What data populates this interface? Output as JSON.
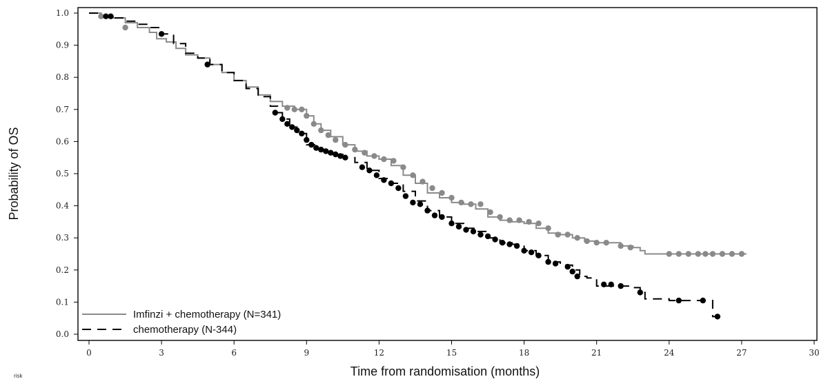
{
  "chart_data": {
    "type": "line",
    "xlabel": "Time from randomisation (months)",
    "ylabel": "Probability of OS",
    "xlim": [
      0,
      30
    ],
    "ylim": [
      0,
      1.0
    ],
    "xticks": [
      0,
      3,
      6,
      9,
      12,
      15,
      18,
      21,
      24,
      27,
      30
    ],
    "yticks": [
      0.0,
      0.1,
      0.2,
      0.3,
      0.4,
      0.5,
      0.6,
      0.7,
      0.8,
      0.9,
      1.0
    ],
    "corner_text": "risk",
    "legend": [
      {
        "label": "Imfinzi + chemotherapy (N=341)",
        "style": "solid",
        "color": "#8a8a8a"
      },
      {
        "label": "chemotherapy (N-344)",
        "style": "dashed",
        "color": "#000000"
      }
    ],
    "series": [
      {
        "name": "Imfinzi + chemotherapy (N=341)",
        "color": "#8a8a8a",
        "style": "solid",
        "x": [
          0,
          0.5,
          1.0,
          1.5,
          2.0,
          2.5,
          2.8,
          3.2,
          3.6,
          4.0,
          4.5,
          5.0,
          5.5,
          6.0,
          6.5,
          7.0,
          7.5,
          8.0,
          8.5,
          9.0,
          9.3,
          9.6,
          10.0,
          10.5,
          11.0,
          11.5,
          12.0,
          12.5,
          13.0,
          13.5,
          14.0,
          14.5,
          15.0,
          15.5,
          16.0,
          16.5,
          17.0,
          17.5,
          18.0,
          18.5,
          19.0,
          19.5,
          20.0,
          20.5,
          21.0,
          21.5,
          22.0,
          22.5,
          22.8,
          23.0,
          24.0,
          25.0,
          26.0,
          27.2
        ],
        "y": [
          1.0,
          0.99,
          0.985,
          0.97,
          0.955,
          0.94,
          0.92,
          0.91,
          0.89,
          0.87,
          0.86,
          0.84,
          0.815,
          0.79,
          0.77,
          0.745,
          0.725,
          0.71,
          0.7,
          0.68,
          0.655,
          0.635,
          0.615,
          0.59,
          0.57,
          0.555,
          0.545,
          0.525,
          0.495,
          0.47,
          0.44,
          0.425,
          0.41,
          0.405,
          0.39,
          0.365,
          0.355,
          0.35,
          0.345,
          0.33,
          0.315,
          0.31,
          0.3,
          0.29,
          0.285,
          0.285,
          0.275,
          0.27,
          0.26,
          0.25,
          0.25,
          0.25,
          0.25,
          0.25
        ],
        "censor_x": [
          0.5,
          1.5,
          4.9,
          8.2,
          8.5,
          8.8,
          9.0,
          9.3,
          9.6,
          9.9,
          10.2,
          10.6,
          11.0,
          11.4,
          11.8,
          12.2,
          12.6,
          13.0,
          13.4,
          13.8,
          14.2,
          14.6,
          15.0,
          15.4,
          15.8,
          16.2,
          16.6,
          17.0,
          17.4,
          17.8,
          18.2,
          18.6,
          19.0,
          19.4,
          19.8,
          20.2,
          20.6,
          21.0,
          21.4,
          22.0,
          22.4,
          24.0,
          24.4,
          24.8,
          25.2,
          25.5,
          25.8,
          26.2,
          26.6,
          27.0
        ],
        "censor_y": [
          0.99,
          0.955,
          0.84,
          0.705,
          0.7,
          0.7,
          0.68,
          0.655,
          0.635,
          0.62,
          0.605,
          0.59,
          0.575,
          0.565,
          0.555,
          0.545,
          0.54,
          0.52,
          0.495,
          0.475,
          0.455,
          0.44,
          0.425,
          0.41,
          0.405,
          0.405,
          0.38,
          0.365,
          0.355,
          0.355,
          0.35,
          0.345,
          0.33,
          0.31,
          0.31,
          0.3,
          0.29,
          0.285,
          0.285,
          0.275,
          0.27,
          0.25,
          0.25,
          0.25,
          0.25,
          0.25,
          0.25,
          0.25,
          0.25,
          0.25
        ]
      },
      {
        "name": "chemotherapy (N-344)",
        "color": "#000000",
        "style": "dashed",
        "x": [
          0,
          0.5,
          1.0,
          1.5,
          2.0,
          2.5,
          3.0,
          3.5,
          4.0,
          4.5,
          5.0,
          5.5,
          6.0,
          6.5,
          7.0,
          7.5,
          7.8,
          8.0,
          8.3,
          8.6,
          9.0,
          9.5,
          10.0,
          10.5,
          11.0,
          11.5,
          12.0,
          12.5,
          13.0,
          13.5,
          14.0,
          14.5,
          15.0,
          15.5,
          16.0,
          16.5,
          17.0,
          17.5,
          18.0,
          18.5,
          19.0,
          19.5,
          20.0,
          20.3,
          20.6,
          21.0,
          21.5,
          22.0,
          22.5,
          22.8,
          23.0,
          24.0,
          25.0,
          25.8,
          26.0
        ],
        "y": [
          1.0,
          0.99,
          0.985,
          0.975,
          0.965,
          0.955,
          0.935,
          0.905,
          0.875,
          0.86,
          0.84,
          0.815,
          0.79,
          0.765,
          0.74,
          0.71,
          0.69,
          0.67,
          0.645,
          0.625,
          0.59,
          0.575,
          0.56,
          0.55,
          0.535,
          0.51,
          0.485,
          0.47,
          0.445,
          0.415,
          0.385,
          0.365,
          0.345,
          0.33,
          0.32,
          0.3,
          0.285,
          0.28,
          0.26,
          0.245,
          0.225,
          0.215,
          0.2,
          0.18,
          0.175,
          0.15,
          0.15,
          0.15,
          0.145,
          0.13,
          0.11,
          0.105,
          0.105,
          0.055,
          0.055
        ],
        "censor_x": [
          0.7,
          0.9,
          3.0,
          4.9,
          7.7,
          8.0,
          8.2,
          8.4,
          8.6,
          8.8,
          9.0,
          9.2,
          9.4,
          9.6,
          9.8,
          10.0,
          10.2,
          10.4,
          10.6,
          11.3,
          11.6,
          11.9,
          12.2,
          12.5,
          12.8,
          13.1,
          13.4,
          13.7,
          14.0,
          14.3,
          14.6,
          15.0,
          15.3,
          15.6,
          15.9,
          16.2,
          16.5,
          16.8,
          17.1,
          17.4,
          17.7,
          18.0,
          18.3,
          18.6,
          19.0,
          19.3,
          19.8,
          20.0,
          20.2,
          21.3,
          21.6,
          22.0,
          22.8,
          24.4,
          25.4,
          26.0
        ],
        "censor_y": [
          0.99,
          0.99,
          0.935,
          0.84,
          0.69,
          0.67,
          0.655,
          0.645,
          0.635,
          0.625,
          0.605,
          0.59,
          0.58,
          0.575,
          0.57,
          0.565,
          0.56,
          0.555,
          0.55,
          0.52,
          0.51,
          0.495,
          0.48,
          0.47,
          0.455,
          0.43,
          0.41,
          0.405,
          0.385,
          0.37,
          0.365,
          0.345,
          0.335,
          0.325,
          0.32,
          0.31,
          0.305,
          0.295,
          0.285,
          0.28,
          0.275,
          0.26,
          0.255,
          0.245,
          0.225,
          0.22,
          0.21,
          0.195,
          0.18,
          0.155,
          0.155,
          0.15,
          0.13,
          0.105,
          0.105,
          0.055
        ]
      }
    ]
  }
}
